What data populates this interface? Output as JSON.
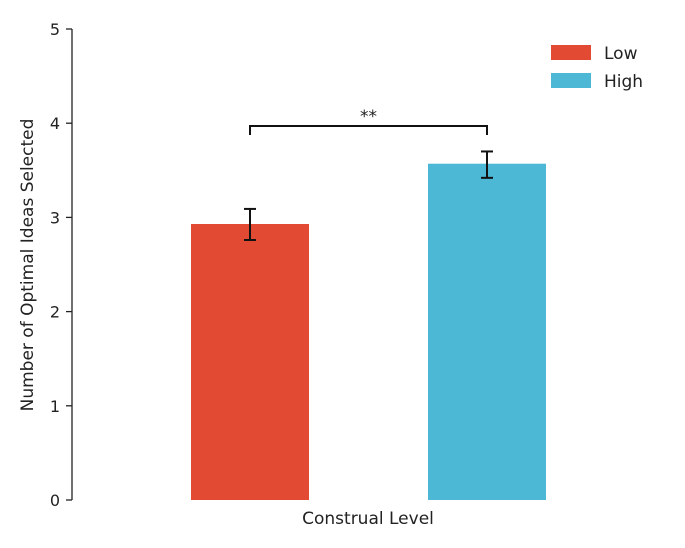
{
  "chart_data": {
    "type": "bar",
    "title": "",
    "xlabel": "Construal Level",
    "ylabel": "Number of Optimal Ideas Selected",
    "ylim": [
      0,
      5
    ],
    "yticks": [
      "0",
      "1",
      "2",
      "3",
      "4",
      "5"
    ],
    "grid": false,
    "legend_position": "top-right",
    "series": [
      {
        "name": "Low",
        "value": 2.93,
        "error_low": 2.76,
        "error_high": 3.09,
        "color": "#e34a33"
      },
      {
        "name": "High",
        "value": 3.57,
        "error_low": 3.42,
        "error_high": 3.7,
        "color": "#4db8d6"
      }
    ],
    "significance": {
      "label": "**",
      "level": 3.97
    }
  }
}
